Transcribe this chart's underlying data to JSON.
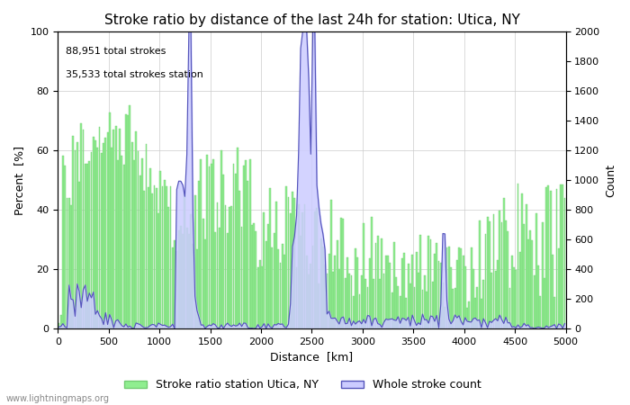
{
  "title": "Stroke ratio by distance of the last 24h for station: Utica, NY",
  "xlabel": "Distance  [km]",
  "ylabel_left": "Percent  [%]",
  "ylabel_right": "Count",
  "annotation_line1": "88,951 total strokes",
  "annotation_line2": "35,533 total strokes station",
  "xlim": [
    0,
    5000
  ],
  "ylim_left": [
    0,
    100
  ],
  "ylim_right": [
    0,
    2000
  ],
  "xticks": [
    0,
    500,
    1000,
    1500,
    2000,
    2500,
    3000,
    3500,
    4000,
    4500,
    5000
  ],
  "yticks_left": [
    0,
    20,
    40,
    60,
    80,
    100
  ],
  "yticks_right": [
    0,
    200,
    400,
    600,
    800,
    1000,
    1200,
    1400,
    1600,
    1800,
    2000
  ],
  "bar_color": "#90EE90",
  "bar_edge_color": "#72CC72",
  "fill_color": "#CCCCFF",
  "line_color": "#5555BB",
  "legend_label_bar": "Stroke ratio station Utica, NY",
  "legend_label_fill": "Whole stroke count",
  "watermark": "www.lightningmaps.org",
  "background_color": "#ffffff",
  "grid_color": "#cccccc",
  "title_fontsize": 11,
  "label_fontsize": 9,
  "tick_fontsize": 8,
  "annotation_fontsize": 8
}
